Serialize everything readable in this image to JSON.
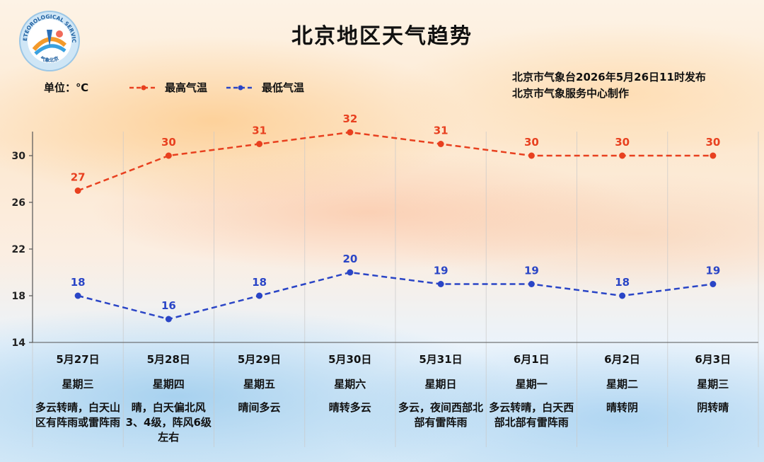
{
  "header": {
    "title": "北京地区天气趋势",
    "unit_label": "单位：℃",
    "publish_line1": "北京市气象台2026年5月26日11时发布",
    "publish_line2": "北京市气象服务中心制作"
  },
  "legend": {
    "high_label": "最高气温",
    "low_label": "最低气温"
  },
  "logo": {
    "text_top": "METEOROLOGICAL SERVICE",
    "text_bottom": "气象北京"
  },
  "colors": {
    "high": "#e8401f",
    "low": "#2a45c6",
    "grid": "#c9c9c9",
    "axis": "#555555"
  },
  "days": [
    {
      "date": "5月27日",
      "weekday": "星期三",
      "desc": "多云转晴，白天山区有阵雨或雷阵雨"
    },
    {
      "date": "5月28日",
      "weekday": "星期四",
      "desc": "晴，白天偏北风3、4级，阵风6级左右"
    },
    {
      "date": "5月29日",
      "weekday": "星期五",
      "desc": "晴间多云"
    },
    {
      "date": "5月30日",
      "weekday": "星期六",
      "desc": "晴转多云"
    },
    {
      "date": "5月31日",
      "weekday": "星期日",
      "desc": "多云，夜间西部北部有雷阵雨"
    },
    {
      "date": "6月1日",
      "weekday": "星期一",
      "desc": "多云转晴，白天西部北部有雷阵雨"
    },
    {
      "date": "6月2日",
      "weekday": "星期二",
      "desc": "晴转阴"
    },
    {
      "date": "6月3日",
      "weekday": "星期三",
      "desc": "阴转晴"
    }
  ],
  "chart_data": {
    "type": "line",
    "categories": [
      "5月27日",
      "5月28日",
      "5月29日",
      "5月30日",
      "5月31日",
      "6月1日",
      "6月2日",
      "6月3日"
    ],
    "series": [
      {
        "name": "最高气温",
        "values": [
          27,
          30,
          31,
          32,
          31,
          30,
          30,
          30
        ],
        "color": "#e8401f",
        "style": "dashed"
      },
      {
        "name": "最低气温",
        "values": [
          18,
          16,
          18,
          20,
          19,
          19,
          18,
          19
        ],
        "color": "#2a45c6",
        "style": "dashed"
      }
    ],
    "ylim": [
      14,
      32
    ],
    "yticks": [
      14,
      18,
      22,
      26,
      30
    ],
    "grid": "vertical column separators",
    "legend_position": "top-left",
    "data_labels": true
  }
}
